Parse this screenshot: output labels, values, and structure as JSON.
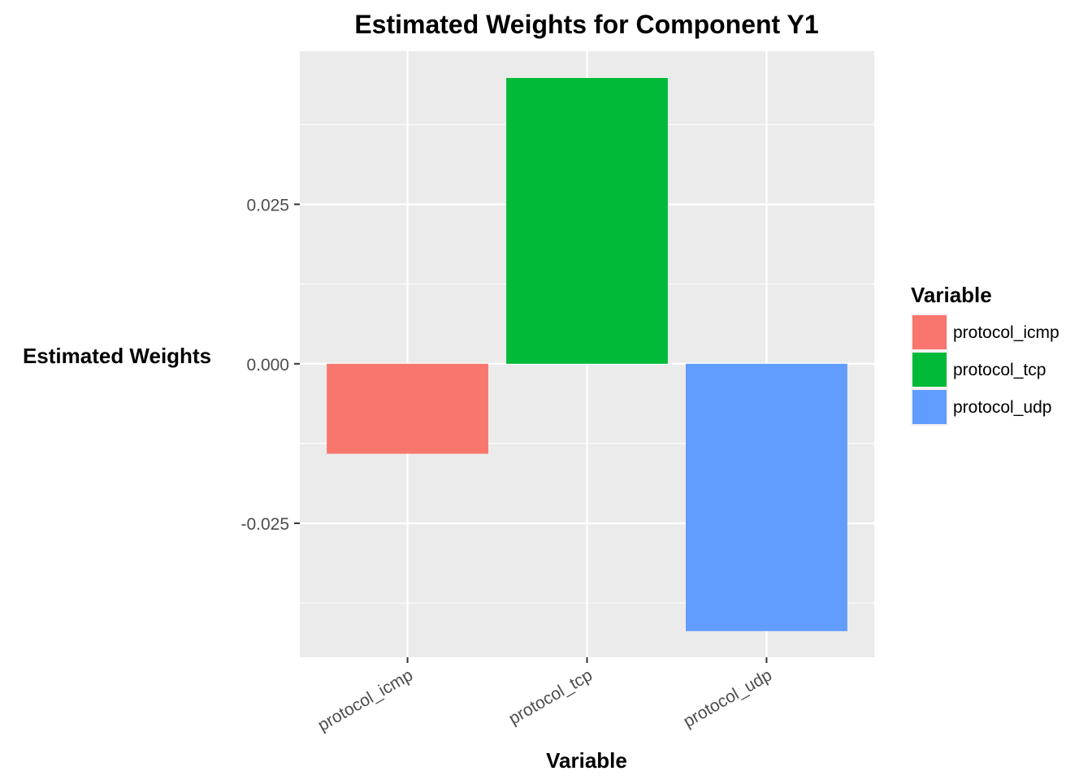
{
  "chart_data": {
    "type": "bar",
    "title": "Estimated Weights for Component Y1",
    "xlabel": "Variable",
    "ylabel": "Estimated Weights",
    "categories": [
      "protocol_icmp",
      "protocol_tcp",
      "protocol_udp"
    ],
    "values": [
      -0.0141,
      0.0448,
      -0.0419
    ],
    "colors": [
      "#F8766D",
      "#00BA38",
      "#619CFF"
    ],
    "ylim": [
      -0.046,
      0.049
    ],
    "yticks": [
      -0.025,
      0.0,
      0.025
    ],
    "ytick_labels": [
      "-0.025",
      "0.000",
      "0.025"
    ],
    "grid": true,
    "legend": {
      "title": "Variable",
      "position": "right",
      "items": [
        "protocol_icmp",
        "protocol_tcp",
        "protocol_udp"
      ]
    }
  }
}
